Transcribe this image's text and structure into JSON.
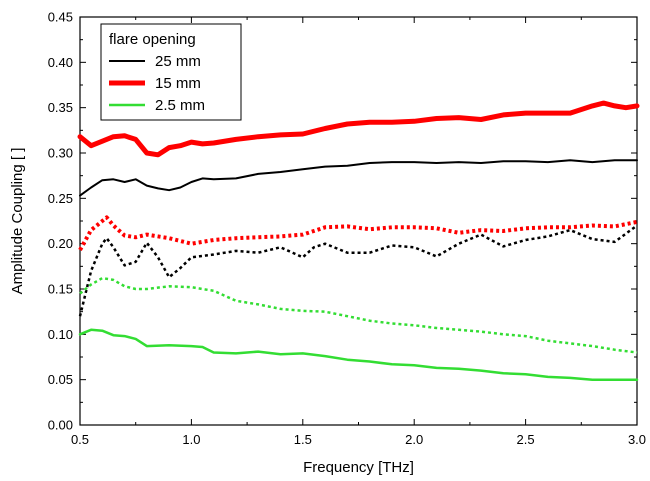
{
  "chart_data": {
    "type": "line",
    "title": "",
    "xlabel": "Frequency [THz]",
    "ylabel": "Amplitude Coupling [ ]",
    "xlim": [
      0.5,
      3.0
    ],
    "ylim": [
      0.0,
      0.45
    ],
    "xticks": [
      "0.5",
      "1.0",
      "1.5",
      "2.0",
      "2.5",
      "3.0"
    ],
    "yticks": [
      "0.00",
      "0.05",
      "0.10",
      "0.15",
      "0.20",
      "0.25",
      "0.30",
      "0.35",
      "0.40",
      "0.45"
    ],
    "grid": false,
    "legend": {
      "title": "flare opening",
      "placement": "top-left",
      "entries": [
        {
          "label": "25 mm",
          "color": "#000000",
          "width": 2
        },
        {
          "label": "15 mm",
          "color": "#ff0000",
          "width": 5
        },
        {
          "label": "2.5 mm",
          "color": "#33dd33",
          "width": 2.5
        }
      ]
    },
    "series": [
      {
        "color": "#000000",
        "width": 2,
        "style": "solid",
        "x": [
          0.5,
          0.55,
          0.6,
          0.65,
          0.7,
          0.75,
          0.8,
          0.85,
          0.9,
          0.95,
          1.0,
          1.05,
          1.1,
          1.2,
          1.3,
          1.4,
          1.5,
          1.6,
          1.7,
          1.8,
          1.9,
          2.0,
          2.1,
          2.2,
          2.3,
          2.4,
          2.5,
          2.6,
          2.7,
          2.8,
          2.9,
          3.0
        ],
        "y": [
          0.253,
          0.262,
          0.27,
          0.271,
          0.268,
          0.271,
          0.264,
          0.261,
          0.259,
          0.262,
          0.268,
          0.272,
          0.271,
          0.272,
          0.277,
          0.279,
          0.282,
          0.285,
          0.286,
          0.289,
          0.29,
          0.29,
          0.289,
          0.29,
          0.289,
          0.291,
          0.291,
          0.29,
          0.292,
          0.29,
          0.292,
          0.292
        ]
      },
      {
        "color": "#ff0000",
        "width": 5,
        "style": "solid",
        "x": [
          0.5,
          0.55,
          0.6,
          0.65,
          0.7,
          0.75,
          0.8,
          0.85,
          0.9,
          0.95,
          1.0,
          1.05,
          1.1,
          1.2,
          1.3,
          1.4,
          1.5,
          1.6,
          1.7,
          1.8,
          1.9,
          2.0,
          2.1,
          2.2,
          2.3,
          2.4,
          2.5,
          2.6,
          2.7,
          2.8,
          2.85,
          2.9,
          2.95,
          3.0
        ],
        "y": [
          0.318,
          0.308,
          0.313,
          0.318,
          0.319,
          0.315,
          0.3,
          0.298,
          0.306,
          0.308,
          0.312,
          0.31,
          0.311,
          0.315,
          0.318,
          0.32,
          0.321,
          0.327,
          0.332,
          0.334,
          0.334,
          0.335,
          0.338,
          0.339,
          0.337,
          0.342,
          0.344,
          0.344,
          0.344,
          0.352,
          0.355,
          0.352,
          0.35,
          0.352
        ]
      },
      {
        "color": "#33dd33",
        "width": 2.5,
        "style": "solid",
        "x": [
          0.5,
          0.55,
          0.6,
          0.65,
          0.7,
          0.75,
          0.8,
          0.9,
          1.0,
          1.05,
          1.1,
          1.2,
          1.3,
          1.4,
          1.5,
          1.6,
          1.7,
          1.8,
          1.9,
          2.0,
          2.1,
          2.2,
          2.3,
          2.4,
          2.5,
          2.6,
          2.7,
          2.8,
          2.9,
          3.0
        ],
        "y": [
          0.1,
          0.105,
          0.104,
          0.099,
          0.098,
          0.095,
          0.087,
          0.088,
          0.087,
          0.086,
          0.08,
          0.079,
          0.081,
          0.078,
          0.079,
          0.076,
          0.072,
          0.07,
          0.067,
          0.066,
          0.063,
          0.062,
          0.06,
          0.057,
          0.056,
          0.053,
          0.052,
          0.05,
          0.05,
          0.05
        ]
      },
      {
        "color": "#000000",
        "width": 2.5,
        "style": "dotted",
        "x": [
          0.5,
          0.55,
          0.6,
          0.62,
          0.65,
          0.7,
          0.75,
          0.8,
          0.85,
          0.9,
          0.95,
          1.0,
          1.1,
          1.2,
          1.3,
          1.4,
          1.5,
          1.55,
          1.6,
          1.7,
          1.8,
          1.9,
          2.0,
          2.1,
          2.2,
          2.3,
          2.4,
          2.5,
          2.6,
          2.7,
          2.8,
          2.9,
          3.0
        ],
        "y": [
          0.12,
          0.17,
          0.2,
          0.206,
          0.196,
          0.176,
          0.18,
          0.201,
          0.185,
          0.163,
          0.173,
          0.185,
          0.188,
          0.192,
          0.19,
          0.196,
          0.185,
          0.196,
          0.2,
          0.19,
          0.19,
          0.198,
          0.196,
          0.186,
          0.2,
          0.21,
          0.197,
          0.204,
          0.208,
          0.215,
          0.205,
          0.202,
          0.22
        ]
      },
      {
        "color": "#ff0000",
        "width": 4,
        "style": "dotted",
        "x": [
          0.5,
          0.55,
          0.6,
          0.62,
          0.65,
          0.7,
          0.75,
          0.8,
          0.9,
          1.0,
          1.1,
          1.2,
          1.3,
          1.4,
          1.5,
          1.6,
          1.7,
          1.8,
          1.9,
          2.0,
          2.1,
          2.2,
          2.3,
          2.4,
          2.5,
          2.6,
          2.7,
          2.8,
          2.9,
          3.0
        ],
        "y": [
          0.193,
          0.215,
          0.225,
          0.229,
          0.22,
          0.209,
          0.207,
          0.21,
          0.206,
          0.2,
          0.204,
          0.206,
          0.207,
          0.208,
          0.21,
          0.218,
          0.219,
          0.216,
          0.218,
          0.218,
          0.217,
          0.212,
          0.215,
          0.214,
          0.217,
          0.218,
          0.218,
          0.22,
          0.219,
          0.224
        ]
      },
      {
        "color": "#33dd33",
        "width": 2.5,
        "style": "dotted",
        "x": [
          0.5,
          0.55,
          0.6,
          0.65,
          0.7,
          0.75,
          0.8,
          0.9,
          1.0,
          1.1,
          1.2,
          1.3,
          1.4,
          1.5,
          1.6,
          1.7,
          1.8,
          1.9,
          2.0,
          2.1,
          2.2,
          2.3,
          2.4,
          2.5,
          2.6,
          2.7,
          2.8,
          2.9,
          3.0
        ],
        "y": [
          0.145,
          0.155,
          0.162,
          0.16,
          0.153,
          0.15,
          0.15,
          0.153,
          0.152,
          0.148,
          0.137,
          0.133,
          0.128,
          0.126,
          0.125,
          0.12,
          0.115,
          0.112,
          0.11,
          0.107,
          0.105,
          0.103,
          0.1,
          0.098,
          0.093,
          0.09,
          0.087,
          0.083,
          0.08
        ]
      }
    ]
  }
}
